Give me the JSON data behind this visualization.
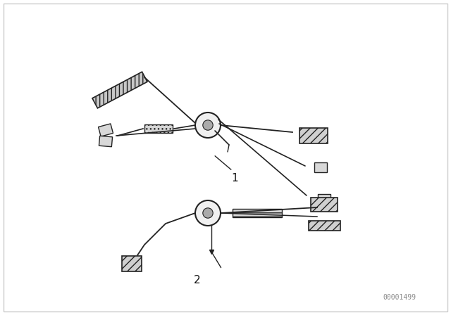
{
  "background_color": "#ffffff",
  "border_color": "#cccccc",
  "line_color": "#222222",
  "component_color": "#333333",
  "label_color": "#111111",
  "watermark_text": "00001499",
  "watermark_color": "#888888",
  "watermark_fontsize": 7,
  "label1_text": "1",
  "label2_text": "2",
  "label_fontsize": 11,
  "fig_width": 6.4,
  "fig_height": 4.48,
  "dpi": 100,
  "outer_border": true
}
